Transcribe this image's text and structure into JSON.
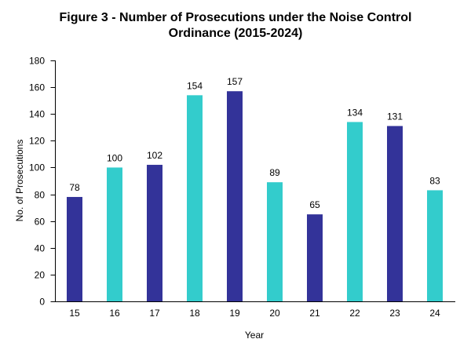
{
  "chart_data": {
    "type": "bar",
    "title_line1": "Figure 3 - Number of Prosecutions under the Noise Control",
    "title_line2": "Ordinance (2015-2024)",
    "xlabel": "Year",
    "ylabel": "No. of Prosecutions",
    "categories": [
      "15",
      "16",
      "17",
      "18",
      "19",
      "20",
      "21",
      "22",
      "23",
      "24"
    ],
    "values": [
      78,
      100,
      102,
      154,
      157,
      89,
      65,
      134,
      131,
      83
    ],
    "ylim": [
      0,
      180
    ],
    "yticks": [
      0,
      20,
      40,
      60,
      80,
      100,
      120,
      140,
      160,
      180
    ],
    "grid": false,
    "legend": "none",
    "colors": {
      "dark": "#333399",
      "light": "#33CCCC"
    },
    "bar_colors": [
      "dark",
      "light",
      "dark",
      "light",
      "dark",
      "light",
      "dark",
      "light",
      "dark",
      "light"
    ]
  }
}
